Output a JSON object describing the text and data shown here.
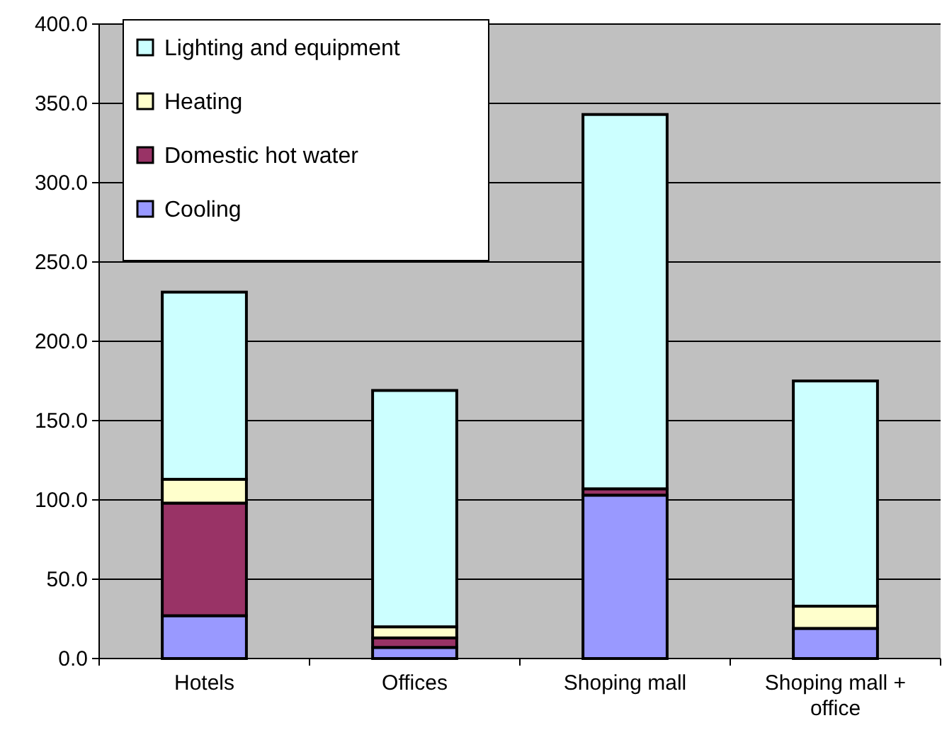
{
  "chart_data": {
    "type": "bar",
    "stacked": true,
    "categories": [
      "Hotels",
      "Offices",
      "Shoping mall",
      "Shoping mall + office"
    ],
    "series": [
      {
        "name": "Cooling",
        "color": "#9999ff",
        "values": [
          27,
          7,
          103,
          19
        ]
      },
      {
        "name": "Domestic hot water",
        "color": "#993366",
        "values": [
          71,
          6,
          4,
          null
        ]
      },
      {
        "name": "Heating",
        "color": "#ffffcc",
        "values": [
          15,
          7,
          0,
          14
        ]
      },
      {
        "name": "Lighting and equipment",
        "color": "#ccffff",
        "values": [
          118,
          149,
          236,
          142
        ]
      }
    ],
    "ylim": [
      0,
      400
    ],
    "yticks": [
      {
        "value": 0,
        "label": "0.0"
      },
      {
        "value": 50,
        "label": "50.0"
      },
      {
        "value": 100,
        "label": "100.0"
      },
      {
        "value": 150,
        "label": "150.0"
      },
      {
        "value": 200,
        "label": "200.0"
      },
      {
        "value": 250,
        "label": "250.0"
      },
      {
        "value": 300,
        "label": "300.0"
      },
      {
        "value": 350,
        "label": "350.0"
      },
      {
        "value": 400,
        "label": "400.0"
      }
    ],
    "grid": "y",
    "legend": "top left"
  }
}
